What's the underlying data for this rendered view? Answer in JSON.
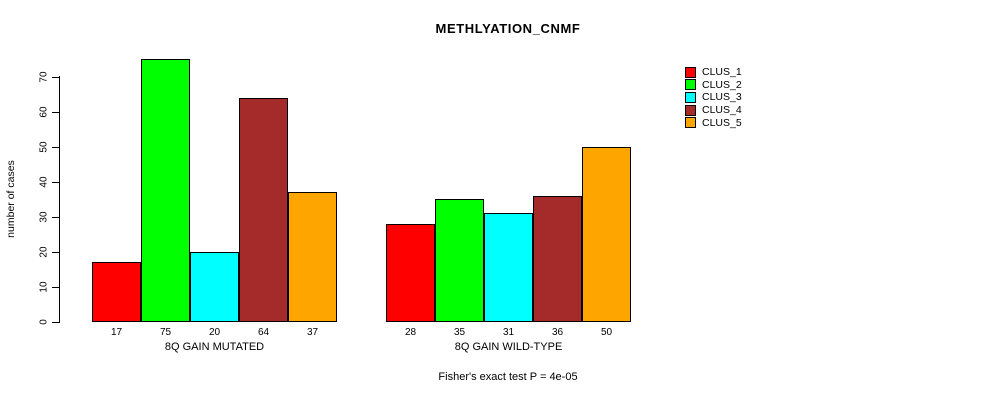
{
  "title": "METHLYATION_CNMF",
  "footer": "Fisher's exact test P = 4e-05",
  "y_axis": {
    "label": "number of cases",
    "ticks": [
      0,
      10,
      20,
      30,
      40,
      50,
      60,
      70
    ]
  },
  "legend": {
    "entries": [
      {
        "label": "CLUS_1",
        "color": "#FF0000"
      },
      {
        "label": "CLUS_2",
        "color": "#00FF00"
      },
      {
        "label": "CLUS_3",
        "color": "#00FFFF"
      },
      {
        "label": "CLUS_4",
        "color": "#A52A2A"
      },
      {
        "label": "CLUS_5",
        "color": "#FFA500"
      }
    ]
  },
  "chart_data": {
    "type": "bar",
    "title": "METHLYATION_CNMF",
    "xlabel": "",
    "ylabel": "number of cases",
    "ylim": [
      0,
      75
    ],
    "yticks": [
      0,
      10,
      20,
      30,
      40,
      50,
      60,
      70
    ],
    "grid": false,
    "legend_position": "right",
    "categories": [
      "8Q GAIN MUTATED",
      "8Q GAIN WILD-TYPE"
    ],
    "series": [
      {
        "name": "CLUS_1",
        "color": "#FF0000",
        "values": [
          17,
          28
        ]
      },
      {
        "name": "CLUS_2",
        "color": "#00FF00",
        "values": [
          75,
          35
        ]
      },
      {
        "name": "CLUS_3",
        "color": "#00FFFF",
        "values": [
          20,
          31
        ]
      },
      {
        "name": "CLUS_4",
        "color": "#A52A2A",
        "values": [
          64,
          36
        ]
      },
      {
        "name": "CLUS_5",
        "color": "#FFA500",
        "values": [
          37,
          50
        ]
      }
    ],
    "bar_value_labels": [
      [
        17,
        75,
        20,
        64,
        37
      ],
      [
        28,
        35,
        31,
        36,
        50
      ]
    ],
    "annotation": "Fisher's exact test P = 4e-05"
  }
}
